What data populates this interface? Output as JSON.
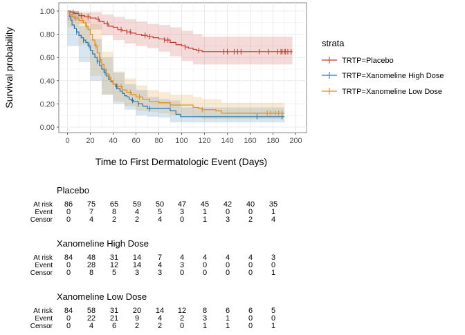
{
  "chart_data": {
    "type": "line",
    "subtype": "kaplan-meier",
    "xlabel": "Time to First Dermatologic Event (Days)",
    "ylabel": "Survival probability",
    "xlim": [
      0,
      200
    ],
    "ylim": [
      0,
      1
    ],
    "x_ticks": [
      0,
      20,
      40,
      60,
      80,
      100,
      120,
      140,
      160,
      180,
      200
    ],
    "y_ticks": [
      0,
      0.2,
      0.4,
      0.6,
      0.8,
      1.0
    ],
    "y_tick_labels": [
      "0.00",
      "0.20",
      "0.40",
      "0.60",
      "0.80",
      "1.00"
    ],
    "grid": true,
    "legend": {
      "title": "strata",
      "position": "right"
    },
    "series": [
      {
        "name": "TRTP=Placebo",
        "color": "#C0392B",
        "steps": [
          [
            0,
            1.0
          ],
          [
            3,
            0.99
          ],
          [
            6,
            0.98
          ],
          [
            10,
            0.96
          ],
          [
            15,
            0.95
          ],
          [
            20,
            0.94
          ],
          [
            25,
            0.93
          ],
          [
            28,
            0.91
          ],
          [
            32,
            0.89
          ],
          [
            36,
            0.87
          ],
          [
            40,
            0.86
          ],
          [
            44,
            0.84
          ],
          [
            48,
            0.83
          ],
          [
            52,
            0.82
          ],
          [
            56,
            0.81
          ],
          [
            60,
            0.8
          ],
          [
            65,
            0.79
          ],
          [
            70,
            0.78
          ],
          [
            75,
            0.77
          ],
          [
            80,
            0.76
          ],
          [
            85,
            0.75
          ],
          [
            90,
            0.73
          ],
          [
            95,
            0.71
          ],
          [
            100,
            0.7
          ],
          [
            103,
            0.69
          ],
          [
            106,
            0.68
          ],
          [
            110,
            0.67
          ],
          [
            113,
            0.66
          ],
          [
            118,
            0.65
          ],
          [
            197,
            0.65
          ]
        ],
        "upper": [
          [
            0,
            1.0
          ],
          [
            10,
            0.99
          ],
          [
            20,
            0.99
          ],
          [
            30,
            0.97
          ],
          [
            40,
            0.95
          ],
          [
            50,
            0.93
          ],
          [
            60,
            0.91
          ],
          [
            70,
            0.89
          ],
          [
            80,
            0.88
          ],
          [
            90,
            0.86
          ],
          [
            100,
            0.83
          ],
          [
            110,
            0.8
          ],
          [
            118,
            0.78
          ],
          [
            197,
            0.78
          ]
        ],
        "lower": [
          [
            0,
            1.0
          ],
          [
            10,
            0.92
          ],
          [
            20,
            0.89
          ],
          [
            30,
            0.84
          ],
          [
            40,
            0.79
          ],
          [
            50,
            0.75
          ],
          [
            60,
            0.72
          ],
          [
            70,
            0.7
          ],
          [
            80,
            0.68
          ],
          [
            90,
            0.65
          ],
          [
            100,
            0.61
          ],
          [
            110,
            0.57
          ],
          [
            118,
            0.54
          ],
          [
            197,
            0.54
          ]
        ],
        "censor_x": [
          5,
          12,
          18,
          27,
          35,
          47,
          52,
          55,
          68,
          72,
          85,
          88,
          103,
          115,
          137,
          140,
          146,
          149,
          152,
          168,
          176,
          184,
          187,
          188,
          190,
          191,
          193,
          196
        ]
      },
      {
        "name": "TRTP=Xanomeline High Dose",
        "color": "#1F77B4",
        "steps": [
          [
            0,
            1.0
          ],
          [
            2,
            0.95
          ],
          [
            3,
            0.92
          ],
          [
            4,
            0.88
          ],
          [
            6,
            0.85
          ],
          [
            8,
            0.82
          ],
          [
            10,
            0.79
          ],
          [
            12,
            0.77
          ],
          [
            14,
            0.75
          ],
          [
            16,
            0.73
          ],
          [
            18,
            0.7
          ],
          [
            20,
            0.66
          ],
          [
            22,
            0.63
          ],
          [
            24,
            0.6
          ],
          [
            26,
            0.57
          ],
          [
            28,
            0.53
          ],
          [
            30,
            0.5
          ],
          [
            32,
            0.47
          ],
          [
            34,
            0.44
          ],
          [
            36,
            0.41
          ],
          [
            38,
            0.39
          ],
          [
            40,
            0.37
          ],
          [
            42,
            0.35
          ],
          [
            44,
            0.33
          ],
          [
            46,
            0.31
          ],
          [
            48,
            0.29
          ],
          [
            50,
            0.27
          ],
          [
            52,
            0.26
          ],
          [
            54,
            0.24
          ],
          [
            56,
            0.23
          ],
          [
            58,
            0.22
          ],
          [
            62,
            0.2
          ],
          [
            66,
            0.18
          ],
          [
            70,
            0.16
          ],
          [
            90,
            0.14
          ],
          [
            95,
            0.11
          ],
          [
            99,
            0.09
          ],
          [
            190,
            0.09
          ]
        ],
        "upper": [
          [
            0,
            1.0
          ],
          [
            10,
            0.87
          ],
          [
            20,
            0.76
          ],
          [
            30,
            0.6
          ],
          [
            40,
            0.47
          ],
          [
            50,
            0.37
          ],
          [
            60,
            0.32
          ],
          [
            70,
            0.26
          ],
          [
            80,
            0.24
          ],
          [
            90,
            0.23
          ],
          [
            99,
            0.17
          ],
          [
            190,
            0.17
          ]
        ],
        "lower": [
          [
            0,
            1.0
          ],
          [
            10,
            0.7
          ],
          [
            20,
            0.56
          ],
          [
            30,
            0.4
          ],
          [
            40,
            0.28
          ],
          [
            50,
            0.2
          ],
          [
            60,
            0.15
          ],
          [
            70,
            0.1
          ],
          [
            80,
            0.09
          ],
          [
            90,
            0.08
          ],
          [
            99,
            0.04
          ],
          [
            190,
            0.04
          ]
        ],
        "censor_x": [
          8,
          14,
          19,
          26,
          33,
          43,
          57,
          62,
          72,
          166,
          188
        ]
      },
      {
        "name": "TRTP=Xanomeline Low Dose",
        "color": "#E08A1E",
        "steps": [
          [
            0,
            1.0
          ],
          [
            2,
            0.97
          ],
          [
            4,
            0.95
          ],
          [
            6,
            0.94
          ],
          [
            10,
            0.92
          ],
          [
            14,
            0.9
          ],
          [
            16,
            0.87
          ],
          [
            18,
            0.84
          ],
          [
            20,
            0.8
          ],
          [
            22,
            0.75
          ],
          [
            24,
            0.7
          ],
          [
            26,
            0.64
          ],
          [
            28,
            0.58
          ],
          [
            30,
            0.54
          ],
          [
            32,
            0.5
          ],
          [
            34,
            0.46
          ],
          [
            36,
            0.43
          ],
          [
            38,
            0.4
          ],
          [
            40,
            0.37
          ],
          [
            44,
            0.35
          ],
          [
            48,
            0.32
          ],
          [
            52,
            0.3
          ],
          [
            56,
            0.28
          ],
          [
            60,
            0.26
          ],
          [
            66,
            0.24
          ],
          [
            72,
            0.22
          ],
          [
            80,
            0.21
          ],
          [
            90,
            0.19
          ],
          [
            110,
            0.17
          ],
          [
            115,
            0.16
          ],
          [
            118,
            0.15
          ],
          [
            130,
            0.14
          ],
          [
            135,
            0.12
          ],
          [
            190,
            0.12
          ]
        ],
        "upper": [
          [
            0,
            1.0
          ],
          [
            10,
            0.98
          ],
          [
            20,
            0.89
          ],
          [
            30,
            0.65
          ],
          [
            40,
            0.48
          ],
          [
            50,
            0.42
          ],
          [
            60,
            0.36
          ],
          [
            70,
            0.32
          ],
          [
            80,
            0.3
          ],
          [
            90,
            0.28
          ],
          [
            110,
            0.26
          ],
          [
            118,
            0.24
          ],
          [
            135,
            0.21
          ],
          [
            190,
            0.21
          ]
        ],
        "lower": [
          [
            0,
            1.0
          ],
          [
            10,
            0.86
          ],
          [
            20,
            0.71
          ],
          [
            30,
            0.44
          ],
          [
            40,
            0.28
          ],
          [
            50,
            0.22
          ],
          [
            60,
            0.18
          ],
          [
            70,
            0.14
          ],
          [
            80,
            0.13
          ],
          [
            90,
            0.12
          ],
          [
            110,
            0.1
          ],
          [
            118,
            0.08
          ],
          [
            135,
            0.07
          ],
          [
            190,
            0.07
          ]
        ],
        "censor_x": [
          7,
          13,
          17,
          25,
          29,
          37,
          47,
          55,
          63,
          90,
          118,
          175,
          178,
          182,
          185,
          188
        ]
      }
    ]
  },
  "risk_table": {
    "row_labels": [
      "At risk",
      "Event",
      "Censor"
    ],
    "groups": [
      {
        "title": "Placebo",
        "at_risk": [
          86,
          75,
          65,
          59,
          50,
          47,
          45,
          42,
          40,
          35
        ],
        "event": [
          0,
          7,
          8,
          4,
          5,
          3,
          1,
          0,
          0,
          1
        ],
        "censor": [
          0,
          4,
          2,
          2,
          4,
          0,
          1,
          3,
          2,
          4
        ]
      },
      {
        "title": "Xanomeline High Dose",
        "at_risk": [
          84,
          48,
          31,
          14,
          7,
          4,
          4,
          4,
          4,
          3
        ],
        "event": [
          0,
          28,
          12,
          14,
          4,
          3,
          0,
          0,
          0,
          0
        ],
        "censor": [
          0,
          8,
          5,
          3,
          3,
          0,
          0,
          0,
          0,
          1
        ]
      },
      {
        "title": "Xanomeline Low Dose",
        "at_risk": [
          84,
          58,
          31,
          20,
          14,
          12,
          8,
          6,
          6,
          5
        ],
        "event": [
          0,
          22,
          21,
          9,
          4,
          2,
          3,
          1,
          0,
          0
        ],
        "censor": [
          0,
          4,
          6,
          2,
          2,
          0,
          1,
          1,
          0,
          1
        ]
      }
    ]
  }
}
